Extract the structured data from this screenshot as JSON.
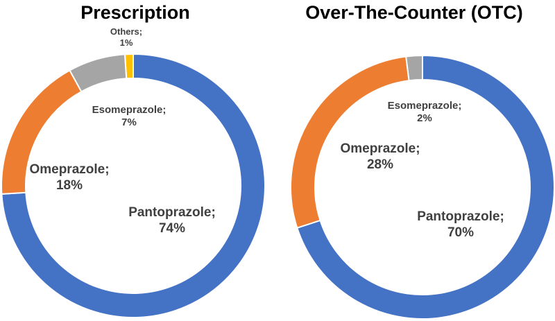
{
  "chart_data": [
    {
      "type": "pie",
      "donut": true,
      "title": "Prescription",
      "slices": [
        {
          "name": "Pantoprazole",
          "value": 74,
          "color": "#4472C4",
          "label_name": "Pantoprazole;",
          "label_value": "74%"
        },
        {
          "name": "Omeprazole",
          "value": 18,
          "color": "#ED7D31",
          "label_name": "Omeprazole;",
          "label_value": "18%"
        },
        {
          "name": "Esomeprazole",
          "value": 7,
          "color": "#A5A5A5",
          "label_name": "Esomeprazole;",
          "label_value": "7%"
        },
        {
          "name": "Others",
          "value": 1,
          "color": "#FFC000",
          "label_name": "Others;",
          "label_value": "1%"
        }
      ]
    },
    {
      "type": "pie",
      "donut": true,
      "title": "Over-The-Counter (OTC)",
      "slices": [
        {
          "name": "Pantoprazole",
          "value": 70,
          "color": "#4472C4",
          "label_name": "Pantoprazole;",
          "label_value": "70%"
        },
        {
          "name": "Omeprazole",
          "value": 28,
          "color": "#ED7D31",
          "label_name": "Omeprazole;",
          "label_value": "28%"
        },
        {
          "name": "Esomeprazole",
          "value": 2,
          "color": "#A5A5A5",
          "label_name": "Esomeprazole;",
          "label_value": "2%"
        }
      ]
    }
  ]
}
